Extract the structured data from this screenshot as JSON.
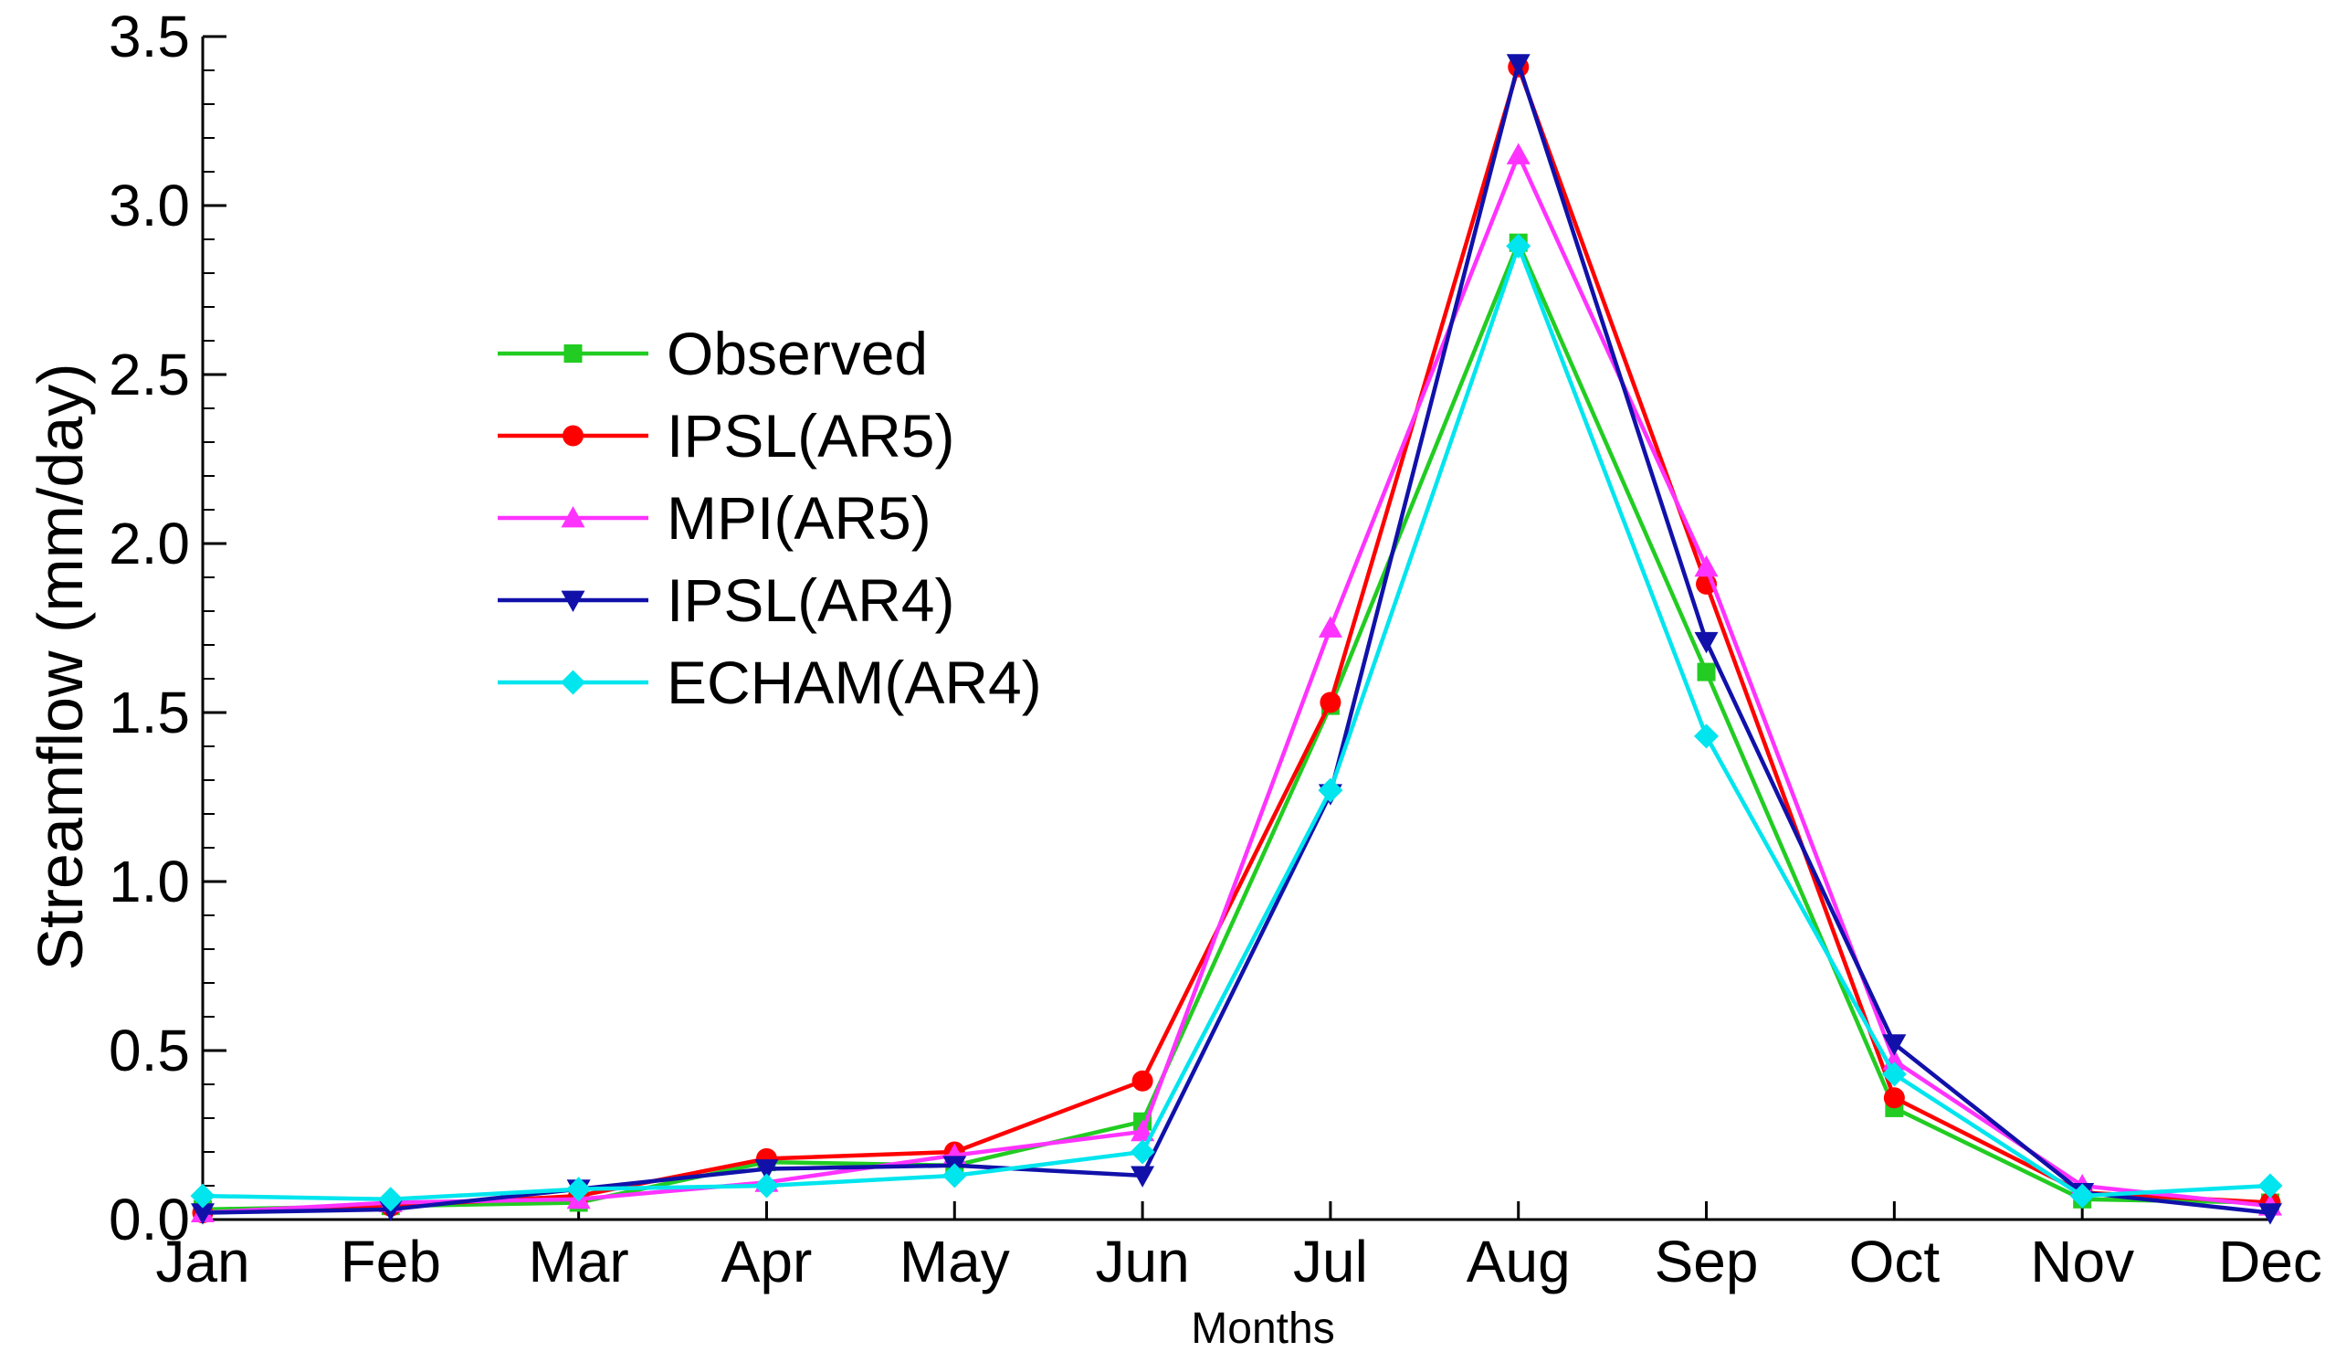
{
  "chart_data": {
    "type": "line",
    "title": "",
    "xlabel": "Months",
    "ylabel": "Streamflow (mm/day)",
    "ylim": [
      0,
      3.5
    ],
    "yticks": [
      0.0,
      0.5,
      1.0,
      1.5,
      2.0,
      2.5,
      3.0,
      3.5
    ],
    "ytick_labels": [
      "0.0",
      "0.5",
      "1.0",
      "1.5",
      "2.0",
      "2.5",
      "3.0",
      "3.5"
    ],
    "y_minor_step": 0.1,
    "categories": [
      "Jan",
      "Feb",
      "Mar",
      "Apr",
      "May",
      "Jun",
      "Jul",
      "Aug",
      "Sep",
      "Oct",
      "Nov",
      "Dec"
    ],
    "grid": false,
    "legend_position": "center-left",
    "series": [
      {
        "name": "Observed",
        "color": "#22cc22",
        "marker": "square",
        "values": [
          0.03,
          0.04,
          0.05,
          0.17,
          0.16,
          0.29,
          1.52,
          2.89,
          1.62,
          0.33,
          0.06,
          0.05
        ]
      },
      {
        "name": "IPSL(AR5)",
        "color": "#ff0000",
        "marker": "circle",
        "values": [
          0.02,
          0.04,
          0.07,
          0.18,
          0.2,
          0.41,
          1.53,
          3.41,
          1.88,
          0.36,
          0.08,
          0.05
        ]
      },
      {
        "name": "MPI(AR5)",
        "color": "#ff33ff",
        "marker": "triangle-up",
        "values": [
          0.02,
          0.05,
          0.06,
          0.11,
          0.19,
          0.26,
          1.75,
          3.15,
          1.93,
          0.47,
          0.1,
          0.04
        ]
      },
      {
        "name": "IPSL(AR4)",
        "color": "#1111aa",
        "marker": "triangle-down",
        "values": [
          0.02,
          0.03,
          0.09,
          0.15,
          0.16,
          0.13,
          1.26,
          3.42,
          1.71,
          0.52,
          0.08,
          0.02
        ]
      },
      {
        "name": "ECHAM(AR4)",
        "color": "#00e5ee",
        "marker": "diamond",
        "values": [
          0.07,
          0.06,
          0.09,
          0.1,
          0.13,
          0.2,
          1.27,
          2.88,
          1.43,
          0.43,
          0.07,
          0.1
        ]
      }
    ]
  }
}
